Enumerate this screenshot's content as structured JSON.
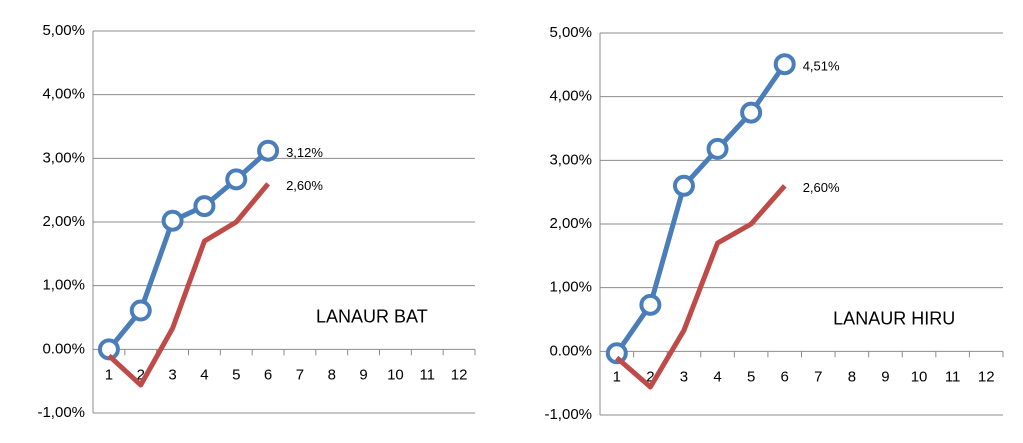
{
  "chart_data": [
    {
      "type": "line",
      "annotation": "LANAUR BAT",
      "categories": [
        "1",
        "2",
        "3",
        "4",
        "5",
        "6",
        "7",
        "8",
        "9",
        "10",
        "11",
        "12"
      ],
      "series": [
        {
          "color": "#4a7ebb",
          "markers": true,
          "values": [
            0.0,
            0.61,
            2.02,
            2.25,
            2.67,
            3.12,
            null,
            null,
            null,
            null,
            null,
            null
          ],
          "value_labels": [
            null,
            null,
            null,
            null,
            null,
            "3,12%",
            null,
            null,
            null,
            null,
            null,
            null
          ]
        },
        {
          "color": "#be4b48",
          "markers": false,
          "values": [
            -0.1,
            -0.56,
            0.33,
            1.7,
            2.0,
            2.6,
            null,
            null,
            null,
            null,
            null,
            null
          ],
          "value_labels": [
            null,
            null,
            null,
            null,
            null,
            "2,60%",
            null,
            null,
            null,
            null,
            null,
            null
          ]
        }
      ],
      "ylim": [
        -1,
        5
      ],
      "yticks": [
        {
          "value": -1,
          "label": "-1,00%"
        },
        {
          "value": 0,
          "label": "0.00%"
        },
        {
          "value": 1,
          "label": "1,00%"
        },
        {
          "value": 2,
          "label": "2,00%"
        },
        {
          "value": 3,
          "label": "3,00%"
        },
        {
          "value": 4,
          "label": "4,00%"
        },
        {
          "value": 5,
          "label": "5,00%"
        }
      ],
      "grid": true
    },
    {
      "type": "line",
      "annotation": "LANAUR HIRU",
      "categories": [
        "1",
        "2",
        "3",
        "4",
        "5",
        "6",
        "7",
        "8",
        "9",
        "10",
        "11",
        "12"
      ],
      "series": [
        {
          "color": "#4a7ebb",
          "markers": true,
          "values": [
            -0.03,
            0.73,
            2.6,
            3.18,
            3.75,
            4.51,
            null,
            null,
            null,
            null,
            null,
            null
          ],
          "value_labels": [
            null,
            null,
            null,
            null,
            null,
            "4,51%",
            null,
            null,
            null,
            null,
            null,
            null
          ]
        },
        {
          "color": "#be4b48",
          "markers": false,
          "values": [
            -0.1,
            -0.56,
            0.33,
            1.7,
            2.0,
            2.6,
            null,
            null,
            null,
            null,
            null,
            null
          ],
          "value_labels": [
            null,
            null,
            null,
            null,
            null,
            "2,60%",
            null,
            null,
            null,
            null,
            null,
            null
          ]
        }
      ],
      "ylim": [
        -1,
        5
      ],
      "yticks": [
        {
          "value": -1,
          "label": "-1,00%"
        },
        {
          "value": 0,
          "label": "0.00%"
        },
        {
          "value": 1,
          "label": "1,00%"
        },
        {
          "value": 2,
          "label": "2,00%"
        },
        {
          "value": 3,
          "label": "3,00%"
        },
        {
          "value": 4,
          "label": "4,00%"
        },
        {
          "value": 5,
          "label": "5,00%"
        }
      ],
      "grid": true
    }
  ]
}
